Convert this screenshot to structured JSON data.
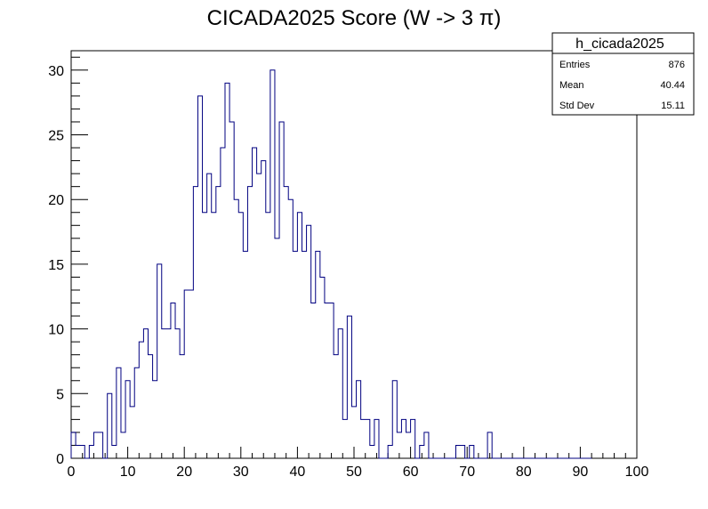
{
  "chart_data": {
    "type": "bar",
    "title": "CICADA2025 Score (W -> 3 π)",
    "xlabel": "",
    "ylabel": "",
    "xlim": [
      0,
      100
    ],
    "ylim": [
      0,
      31.5
    ],
    "bin_width": 0.8,
    "x_ticks": [
      0,
      10,
      20,
      30,
      40,
      50,
      60,
      70,
      80,
      90,
      100
    ],
    "y_ticks": [
      0,
      5,
      10,
      15,
      20,
      25,
      30
    ],
    "line_color": "#000080",
    "counts": [
      2,
      1,
      1,
      0,
      1,
      2,
      2,
      0,
      5,
      1,
      7,
      2,
      6,
      4,
      7,
      9,
      10,
      8,
      6,
      15,
      10,
      10,
      12,
      10,
      8,
      13,
      13,
      21,
      28,
      19,
      22,
      19,
      21,
      24,
      29,
      26,
      20,
      19,
      16,
      21,
      24,
      22,
      23,
      19,
      30,
      17,
      26,
      21,
      20,
      16,
      19,
      16,
      18,
      12,
      16,
      14,
      12,
      12,
      8,
      10,
      3,
      11,
      4,
      6,
      3,
      3,
      1,
      3,
      0,
      0,
      1,
      6,
      2,
      3,
      2,
      3,
      0,
      1,
      2,
      0,
      0,
      0,
      0,
      0,
      0,
      1,
      1,
      0,
      1,
      0,
      0,
      0,
      2,
      0,
      0,
      0,
      0,
      0,
      0,
      0,
      0,
      0,
      0,
      0,
      0,
      0,
      0,
      0,
      0,
      0,
      0,
      0,
      0,
      0,
      0
    ],
    "legend": "top-right",
    "stats_box": {
      "name": "h_cicada2025",
      "rows": [
        {
          "label": "Entries",
          "value": "876"
        },
        {
          "label": "Mean",
          "value": "40.44"
        },
        {
          "label": "Std Dev",
          "value": "15.11"
        }
      ]
    }
  }
}
